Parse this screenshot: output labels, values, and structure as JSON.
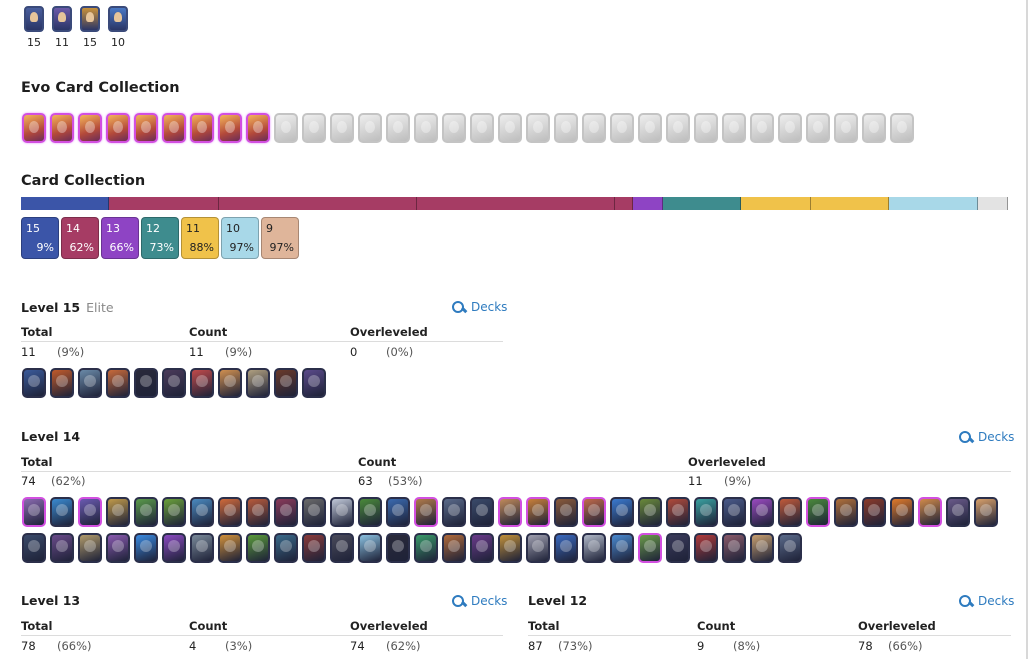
{
  "tower_troops": [
    {
      "level": "15",
      "color": "#4a5f9e"
    },
    {
      "level": "11",
      "color": "#6b5aa8"
    },
    {
      "level": "15",
      "color": "#c8913a"
    },
    {
      "level": "10",
      "color": "#4a78c4"
    }
  ],
  "evo_section": {
    "title": "Evo Card Collection",
    "owned_count": 9,
    "locked_count": 23
  },
  "collection_section": {
    "title": "Card Collection",
    "bar_segments": [
      {
        "color": "#3b55a8",
        "width": 88
      },
      {
        "color": "#a63c64",
        "width": 110
      },
      {
        "color": "#a63c64",
        "width": 198
      },
      {
        "color": "#a63c64",
        "width": 198
      },
      {
        "color": "#a63c64",
        "width": 18
      },
      {
        "color": "#8e44c4",
        "width": 30
      },
      {
        "color": "#3e8c8e",
        "width": 78
      },
      {
        "color": "#f0c24a",
        "width": 70
      },
      {
        "color": "#f0c24a",
        "width": 78
      },
      {
        "color": "#a8d8e8",
        "width": 89
      },
      {
        "color": "#e3e3e3",
        "width": 30
      }
    ],
    "level_boxes": [
      {
        "level": "15",
        "pct": "9%",
        "color": "#3b55a8",
        "dark": false
      },
      {
        "level": "14",
        "pct": "62%",
        "color": "#a63c64",
        "dark": false
      },
      {
        "level": "13",
        "pct": "66%",
        "color": "#8e44c4",
        "dark": false
      },
      {
        "level": "12",
        "pct": "73%",
        "color": "#3e8c8e",
        "dark": false
      },
      {
        "level": "11",
        "pct": "88%",
        "color": "#f0c24a",
        "dark": true
      },
      {
        "level": "10",
        "pct": "97%",
        "color": "#a8d8e8",
        "dark": true
      },
      {
        "level": "9",
        "pct": "97%",
        "color": "#dfb59a",
        "dark": true
      }
    ]
  },
  "labels": {
    "total": "Total",
    "count": "Count",
    "overleveled": "Overleveled",
    "decks": "Decks"
  },
  "level15": {
    "title": "Level 15",
    "subtitle": "Elite",
    "total": "11",
    "total_pct": "(9%)",
    "count": "11",
    "count_pct": "(9%)",
    "over": "0",
    "over_pct": "(0%)",
    "cards": [
      "#3a5a9a",
      "#c05a2a",
      "#6a8aa8",
      "#c86a3a",
      "#2a2a3a",
      "#4a3a5a",
      "#c04a4a",
      "#d09050",
      "#b0a080",
      "#6a3a2a",
      "#5a4a8a"
    ]
  },
  "level14": {
    "title": "Level 14",
    "total": "74",
    "total_pct": "(62%)",
    "count": "63",
    "count_pct": "(53%)",
    "over": "11",
    "over_pct": "(9%)",
    "row1": [
      {
        "c": "#8a6ab0",
        "e": true
      },
      {
        "c": "#3a8ad0",
        "e": false
      },
      {
        "c": "#6a5ab0",
        "e": true
      },
      {
        "c": "#c09a4a",
        "e": false
      },
      {
        "c": "#5a9a4a",
        "e": false
      },
      {
        "c": "#6aa03a",
        "e": false
      },
      {
        "c": "#4a8ac0",
        "e": false
      },
      {
        "c": "#d06a3a",
        "e": false
      },
      {
        "c": "#b85a3a",
        "e": false
      },
      {
        "c": "#8a3a5a",
        "e": false
      },
      {
        "c": "#6a6a6a",
        "e": false
      },
      {
        "c": "#c0c8d8",
        "e": false
      },
      {
        "c": "#4a8a3a",
        "e": false
      },
      {
        "c": "#3a6ab0",
        "e": false
      },
      {
        "c": "#b07a4a",
        "e": true
      },
      {
        "c": "#5a6a8a",
        "e": false
      },
      {
        "c": "#3a4a6a",
        "e": false
      },
      {
        "c": "#c08a5a",
        "e": true
      },
      {
        "c": "#c8803a",
        "e": true
      },
      {
        "c": "#8a5a3a",
        "e": false
      },
      {
        "c": "#c06a4a",
        "e": true
      },
      {
        "c": "#3a7ad0",
        "e": false
      },
      {
        "c": "#6a8a3a",
        "e": false
      },
      {
        "c": "#b04a3a",
        "e": false
      },
      {
        "c": "#3aa0a0",
        "e": false
      },
      {
        "c": "#4a5a8a",
        "e": false
      },
      {
        "c": "#9a4ac0",
        "e": false
      },
      {
        "c": "#c05a3a",
        "e": false
      },
      {
        "c": "#4a8a3a",
        "e": true
      },
      {
        "c": "#b0703a",
        "e": false
      },
      {
        "c": "#8a3a2a",
        "e": false
      },
      {
        "c": "#e07a2a",
        "e": false
      },
      {
        "c": "#d08a4a",
        "e": true
      },
      {
        "c": "#6a5a8a",
        "e": false
      },
      {
        "c": "#d8a06a",
        "e": false
      }
    ],
    "row2": [
      {
        "c": "#3a4a6a",
        "e": false
      },
      {
        "c": "#6a4a8a",
        "e": false
      },
      {
        "c": "#b09a6a",
        "e": false
      },
      {
        "c": "#8a5ab0",
        "e": false
      },
      {
        "c": "#3a8ae0",
        "e": false
      },
      {
        "c": "#8a4ac0",
        "e": false
      },
      {
        "c": "#7a8a9a",
        "e": false
      },
      {
        "c": "#d0903a",
        "e": false
      },
      {
        "c": "#5a9a3a",
        "e": false
      },
      {
        "c": "#3a6a8a",
        "e": false
      },
      {
        "c": "#8a3a3a",
        "e": false
      },
      {
        "c": "#4a4a5a",
        "e": false
      },
      {
        "c": "#8ac0e0",
        "e": false
      },
      {
        "c": "#2a2a3a",
        "e": false
      },
      {
        "c": "#3a9a6a",
        "e": false
      },
      {
        "c": "#b06a3a",
        "e": false
      },
      {
        "c": "#6a3a8a",
        "e": false
      },
      {
        "c": "#c0903a",
        "e": false
      },
      {
        "c": "#a0a0b0",
        "e": false
      },
      {
        "c": "#3a6ac0",
        "e": false
      },
      {
        "c": "#b0b8c8",
        "e": false
      },
      {
        "c": "#4a8ad0",
        "e": false
      },
      {
        "c": "#6a9a4a",
        "e": true
      },
      {
        "c": "#3a3a5a",
        "e": false
      },
      {
        "c": "#b03a3a",
        "e": false
      },
      {
        "c": "#8a5a6a",
        "e": false
      },
      {
        "c": "#c8a070",
        "e": false
      },
      {
        "c": "#5a6a8a",
        "e": false
      }
    ]
  },
  "level13": {
    "title": "Level 13",
    "total": "78",
    "total_pct": "(66%)",
    "count": "4",
    "count_pct": "(3%)",
    "over": "74",
    "over_pct": "(62%)"
  },
  "level12": {
    "title": "Level 12",
    "total": "87",
    "total_pct": "(73%)",
    "count": "9",
    "count_pct": "(8%)",
    "over": "78",
    "over_pct": "(66%)"
  }
}
